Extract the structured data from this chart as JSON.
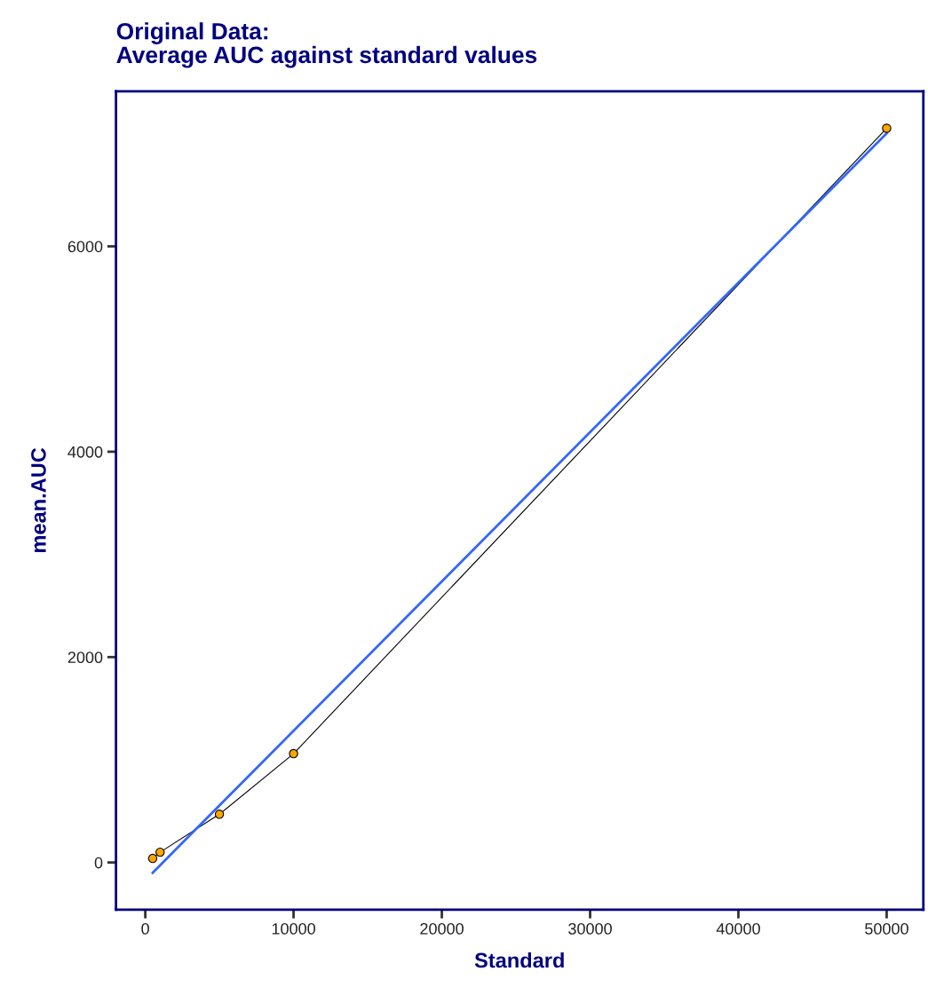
{
  "chart_data": {
    "type": "line",
    "title": "Original Data:\nAverage AUC against standard values",
    "xlabel": "Standard",
    "ylabel": "mean.AUC",
    "x": [
      500,
      1000,
      5000,
      10000,
      50000
    ],
    "series": [
      {
        "color": "#000000",
        "values": [
          40,
          100,
          470,
          1060,
          7150
        ],
        "marker": "none"
      },
      {
        "type": "scatter",
        "color": "#ffa500",
        "values": [
          40,
          100,
          470,
          1060,
          7150
        ],
        "marker": "circle"
      },
      {
        "type": "line",
        "color": "#3366ff",
        "x": [
          500,
          50000
        ],
        "values": [
          -100,
          7100
        ],
        "marker": "none"
      }
    ],
    "xlim": [
      -1975,
      52475
    ],
    "ylim": [
      -460,
      7510
    ],
    "xticks": [
      0,
      10000,
      20000,
      30000,
      40000,
      50000
    ],
    "yticks": [
      0,
      2000,
      4000,
      6000
    ],
    "grid": false,
    "legend": false
  }
}
